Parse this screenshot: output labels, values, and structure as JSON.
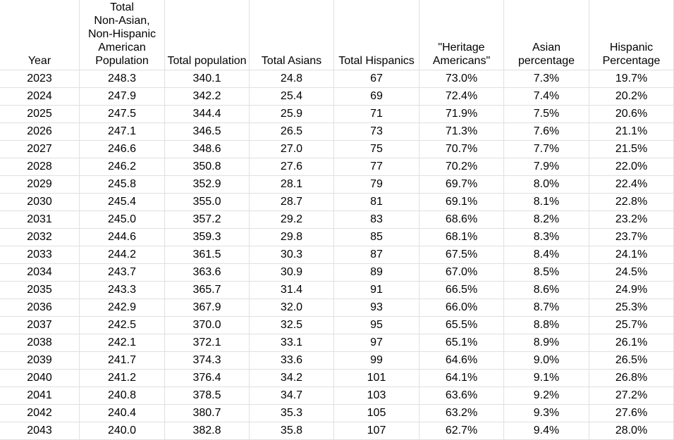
{
  "sheet": {
    "columns": [
      "Year",
      "Total\nNon-Asian,\nNon-Hispanic\nAmerican\nPopulation",
      "Total population",
      "Total Asians",
      "Total Hispanics",
      "\"Heritage\nAmericans\"",
      "Asian\npercentage",
      "Hispanic\nPercentage"
    ],
    "rows": [
      [
        "2023",
        "248.3",
        "340.1",
        "24.8",
        "67",
        "73.0%",
        "7.3%",
        "19.7%"
      ],
      [
        "2024",
        "247.9",
        "342.2",
        "25.4",
        "69",
        "72.4%",
        "7.4%",
        "20.2%"
      ],
      [
        "2025",
        "247.5",
        "344.4",
        "25.9",
        "71",
        "71.9%",
        "7.5%",
        "20.6%"
      ],
      [
        "2026",
        "247.1",
        "346.5",
        "26.5",
        "73",
        "71.3%",
        "7.6%",
        "21.1%"
      ],
      [
        "2027",
        "246.6",
        "348.6",
        "27.0",
        "75",
        "70.7%",
        "7.7%",
        "21.5%"
      ],
      [
        "2028",
        "246.2",
        "350.8",
        "27.6",
        "77",
        "70.2%",
        "7.9%",
        "22.0%"
      ],
      [
        "2029",
        "245.8",
        "352.9",
        "28.1",
        "79",
        "69.7%",
        "8.0%",
        "22.4%"
      ],
      [
        "2030",
        "245.4",
        "355.0",
        "28.7",
        "81",
        "69.1%",
        "8.1%",
        "22.8%"
      ],
      [
        "2031",
        "245.0",
        "357.2",
        "29.2",
        "83",
        "68.6%",
        "8.2%",
        "23.2%"
      ],
      [
        "2032",
        "244.6",
        "359.3",
        "29.8",
        "85",
        "68.1%",
        "8.3%",
        "23.7%"
      ],
      [
        "2033",
        "244.2",
        "361.5",
        "30.3",
        "87",
        "67.5%",
        "8.4%",
        "24.1%"
      ],
      [
        "2034",
        "243.7",
        "363.6",
        "30.9",
        "89",
        "67.0%",
        "8.5%",
        "24.5%"
      ],
      [
        "2035",
        "243.3",
        "365.7",
        "31.4",
        "91",
        "66.5%",
        "8.6%",
        "24.9%"
      ],
      [
        "2036",
        "242.9",
        "367.9",
        "32.0",
        "93",
        "66.0%",
        "8.7%",
        "25.3%"
      ],
      [
        "2037",
        "242.5",
        "370.0",
        "32.5",
        "95",
        "65.5%",
        "8.8%",
        "25.7%"
      ],
      [
        "2038",
        "242.1",
        "372.1",
        "33.1",
        "97",
        "65.1%",
        "8.9%",
        "26.1%"
      ],
      [
        "2039",
        "241.7",
        "374.3",
        "33.6",
        "99",
        "64.6%",
        "9.0%",
        "26.5%"
      ],
      [
        "2040",
        "241.2",
        "376.4",
        "34.2",
        "101",
        "64.1%",
        "9.1%",
        "26.8%"
      ],
      [
        "2041",
        "240.8",
        "378.5",
        "34.7",
        "103",
        "63.6%",
        "9.2%",
        "27.2%"
      ],
      [
        "2042",
        "240.4",
        "380.7",
        "35.3",
        "105",
        "63.2%",
        "9.3%",
        "27.6%"
      ],
      [
        "2043",
        "240.0",
        "382.8",
        "35.8",
        "107",
        "62.7%",
        "9.4%",
        "28.0%"
      ]
    ]
  },
  "colors": {
    "gridline": "#e0e0e0",
    "text": "#000000",
    "background": "#ffffff"
  }
}
